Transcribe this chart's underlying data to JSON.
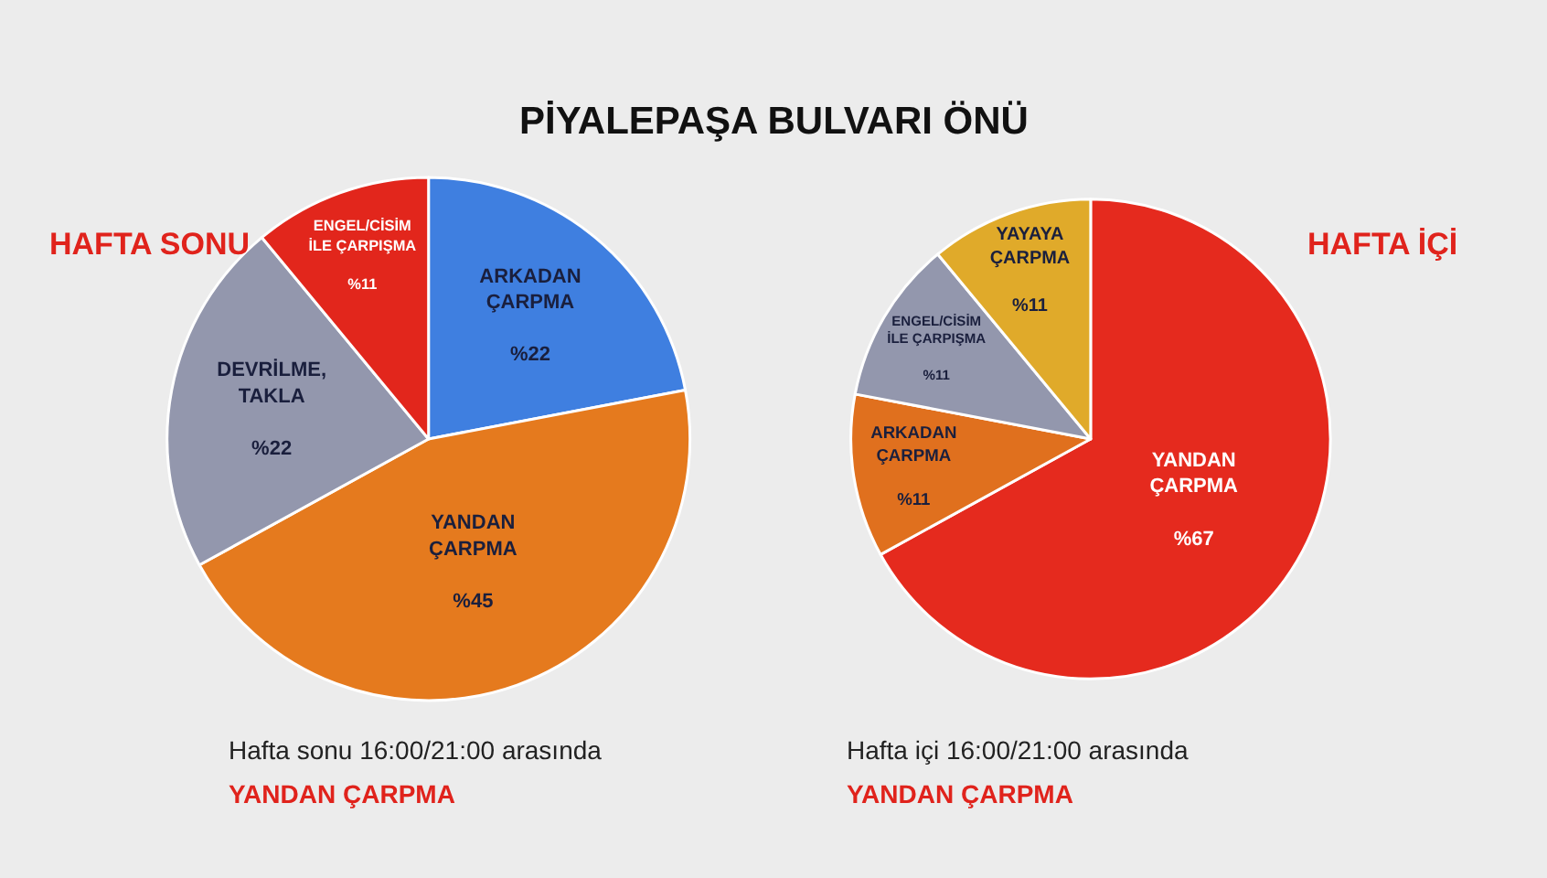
{
  "chart_data": [
    {
      "type": "other",
      "title": "PİYALEPAŞA BULVARI ÖNÜ"
    },
    {
      "type": "pie",
      "title": "HAFTA SONU",
      "categories": [
        "ARKADAN ÇARPMA",
        "YANDAN ÇARPMA",
        "DEVRİLME, TAKLA",
        "ENGEL/CİSİM İLE ÇARPIŞMA"
      ],
      "values": [
        22,
        45,
        22,
        11
      ],
      "value_labels": [
        "%22",
        "%45",
        "%22",
        "%11"
      ],
      "colors": [
        "#3f7fe0",
        "#e57a1e",
        "#9397ad",
        "#e2261c"
      ],
      "annotations": [
        "Hafta sonu 16:00/21:00 arasında",
        "YANDAN ÇARPMA"
      ]
    },
    {
      "type": "pie",
      "title": "HAFTA İÇİ",
      "categories": [
        "YANDAN ÇARPMA",
        "ARKADAN ÇARPMA",
        "ENGEL/CİSİM İLE ÇARPIŞMA",
        "YAYAYA ÇARPMA"
      ],
      "values": [
        67,
        11,
        11,
        11
      ],
      "value_labels": [
        "%67",
        "%11",
        "%11",
        "%11"
      ],
      "colors": [
        "#e52a1e",
        "#e0701e",
        "#9397ad",
        "#e0aa2a"
      ],
      "annotations": [
        "Hafta içi 16:00/21:00 arasında",
        "YANDAN ÇARPMA"
      ]
    }
  ]
}
